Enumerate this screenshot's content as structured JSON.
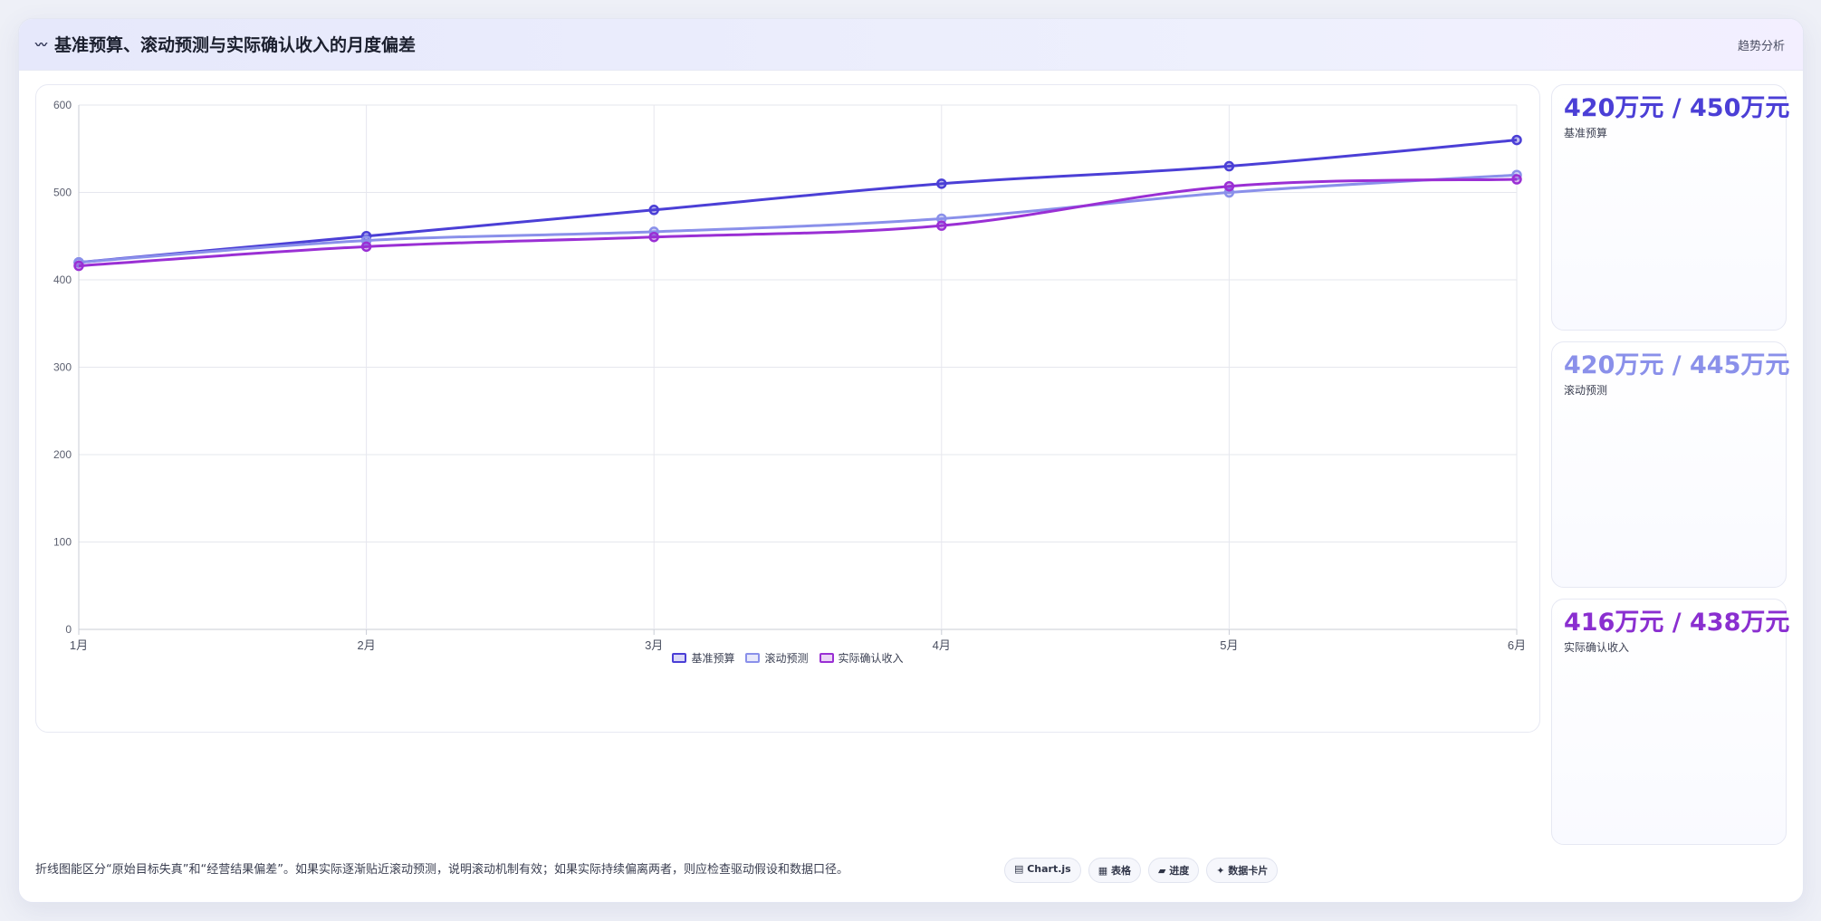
{
  "header": {
    "title": "基准预算、滚动预测与实际确认收入的月度偏差",
    "action": "趋势分析"
  },
  "chart_data": {
    "type": "line",
    "categories": [
      "1月",
      "2月",
      "3月",
      "4月",
      "5月",
      "6月"
    ],
    "ylim": [
      0,
      600
    ],
    "yticks": [
      0,
      100,
      200,
      300,
      400,
      500,
      600
    ],
    "grid": true,
    "legend_position": "bottom",
    "series": [
      {
        "name": "基准预算",
        "color": "#4b3fd6",
        "values": [
          420,
          450,
          480,
          510,
          530,
          560
        ]
      },
      {
        "name": "滚动预测",
        "color": "#8a90ea",
        "values": [
          420,
          445,
          455,
          470,
          500,
          520
        ]
      },
      {
        "name": "实际确认收入",
        "color": "#9a2fd4",
        "values": [
          416,
          438,
          449,
          462,
          507,
          515
        ]
      }
    ]
  },
  "kpis": [
    {
      "value": "420万元 / 450万元",
      "label": "基准预算",
      "color": "#4b3fd6"
    },
    {
      "value": "420万元 / 445万元",
      "label": "滚动预测",
      "color": "#8a90ea"
    },
    {
      "value": "416万元 / 438万元",
      "label": "实际确认收入",
      "color": "#8a2fd0"
    }
  ],
  "footer": {
    "note": "折线图能区分“原始目标失真”和“经营结果偏差”。如果实际逐渐贴近滚动预测，说明滚动机制有效；如果实际持续偏离两者，则应检查驱动假设和数据口径。",
    "chips": [
      "▤ Chart.js",
      "▦ 表格",
      "▰ 进度",
      "✦ 数据卡片"
    ]
  }
}
